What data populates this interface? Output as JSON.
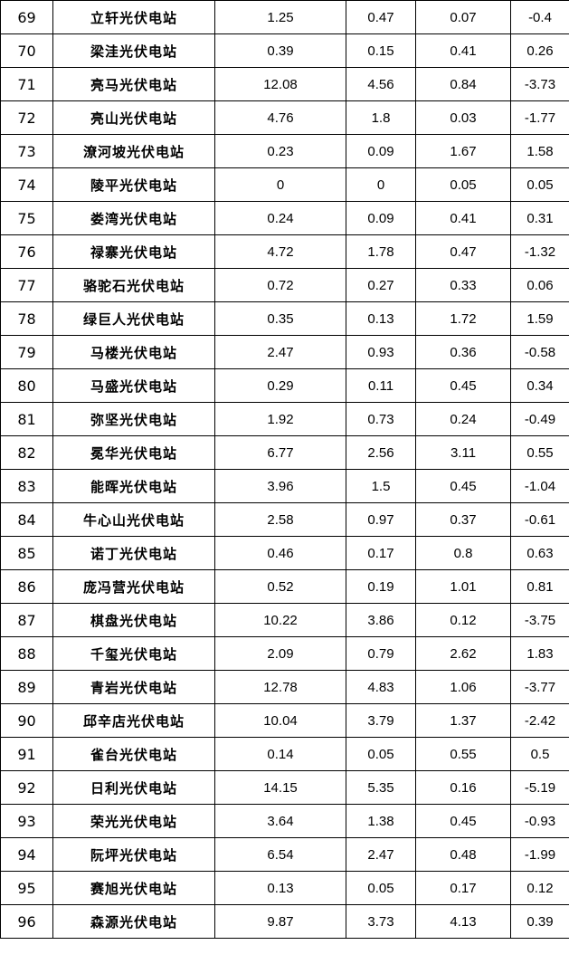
{
  "table": {
    "rows": [
      [
        "69",
        "立轩光伏电站",
        "1.25",
        "0.47",
        "0.07",
        "-0.4"
      ],
      [
        "70",
        "梁洼光伏电站",
        "0.39",
        "0.15",
        "0.41",
        "0.26"
      ],
      [
        "71",
        "亮马光伏电站",
        "12.08",
        "4.56",
        "0.84",
        "-3.73"
      ],
      [
        "72",
        "亮山光伏电站",
        "4.76",
        "1.8",
        "0.03",
        "-1.77"
      ],
      [
        "73",
        "潦河坡光伏电站",
        "0.23",
        "0.09",
        "1.67",
        "1.58"
      ],
      [
        "74",
        "陵平光伏电站",
        "0",
        "0",
        "0.05",
        "0.05"
      ],
      [
        "75",
        "娄湾光伏电站",
        "0.24",
        "0.09",
        "0.41",
        "0.31"
      ],
      [
        "76",
        "禄寨光伏电站",
        "4.72",
        "1.78",
        "0.47",
        "-1.32"
      ],
      [
        "77",
        "骆驼石光伏电站",
        "0.72",
        "0.27",
        "0.33",
        "0.06"
      ],
      [
        "78",
        "绿巨人光伏电站",
        "0.35",
        "0.13",
        "1.72",
        "1.59"
      ],
      [
        "79",
        "马楼光伏电站",
        "2.47",
        "0.93",
        "0.36",
        "-0.58"
      ],
      [
        "80",
        "马盛光伏电站",
        "0.29",
        "0.11",
        "0.45",
        "0.34"
      ],
      [
        "81",
        "弥坚光伏电站",
        "1.92",
        "0.73",
        "0.24",
        "-0.49"
      ],
      [
        "82",
        "冕华光伏电站",
        "6.77",
        "2.56",
        "3.11",
        "0.55"
      ],
      [
        "83",
        "能晖光伏电站",
        "3.96",
        "1.5",
        "0.45",
        "-1.04"
      ],
      [
        "84",
        "牛心山光伏电站",
        "2.58",
        "0.97",
        "0.37",
        "-0.61"
      ],
      [
        "85",
        "诺丁光伏电站",
        "0.46",
        "0.17",
        "0.8",
        "0.63"
      ],
      [
        "86",
        "庞冯营光伏电站",
        "0.52",
        "0.19",
        "1.01",
        "0.81"
      ],
      [
        "87",
        "棋盘光伏电站",
        "10.22",
        "3.86",
        "0.12",
        "-3.75"
      ],
      [
        "88",
        "千玺光伏电站",
        "2.09",
        "0.79",
        "2.62",
        "1.83"
      ],
      [
        "89",
        "青岩光伏电站",
        "12.78",
        "4.83",
        "1.06",
        "-3.77"
      ],
      [
        "90",
        "邱辛店光伏电站",
        "10.04",
        "3.79",
        "1.37",
        "-2.42"
      ],
      [
        "91",
        "雀台光伏电站",
        "0.14",
        "0.05",
        "0.55",
        "0.5"
      ],
      [
        "92",
        "日利光伏电站",
        "14.15",
        "5.35",
        "0.16",
        "-5.19"
      ],
      [
        "93",
        "荣光光伏电站",
        "3.64",
        "1.38",
        "0.45",
        "-0.93"
      ],
      [
        "94",
        "阮坪光伏电站",
        "6.54",
        "2.47",
        "0.48",
        "-1.99"
      ],
      [
        "95",
        "赛旭光伏电站",
        "0.13",
        "0.05",
        "0.17",
        "0.12"
      ],
      [
        "96",
        "森源光伏电站",
        "9.87",
        "3.73",
        "4.13",
        "0.39"
      ]
    ]
  }
}
